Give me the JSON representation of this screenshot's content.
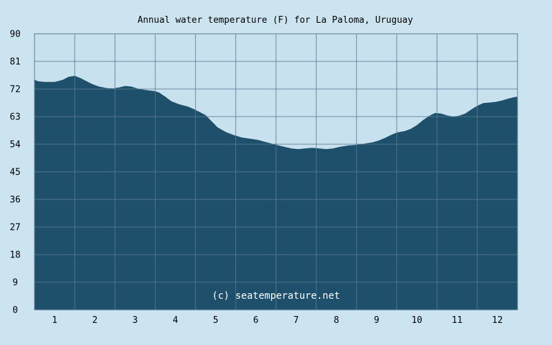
{
  "chart_data": {
    "type": "area",
    "title": "Annual water temperature (F) for La Paloma, Uruguay",
    "xlabel": "",
    "ylabel": "",
    "ylim": [
      0,
      90
    ],
    "xlim": [
      0.5,
      12.5
    ],
    "y_ticks": [
      "0",
      "9",
      "18",
      "27",
      "36",
      "45",
      "54",
      "63",
      "72",
      "81",
      "90"
    ],
    "x_ticks": [
      "1",
      "2",
      "3",
      "4",
      "5",
      "6",
      "7",
      "8",
      "9",
      "10",
      "11",
      "12"
    ],
    "grid": true,
    "annotation": "(c) seatemperature.net",
    "series": [
      {
        "x": [
          0.5,
          0.6,
          0.75,
          1.0,
          1.2,
          1.35,
          1.5,
          1.65,
          1.8,
          1.95,
          2.1,
          2.3,
          2.45,
          2.6,
          2.75,
          2.9,
          3.1,
          3.3,
          3.5,
          3.6,
          3.75,
          3.9,
          4.1,
          4.3,
          4.45,
          4.6,
          4.75,
          4.9,
          5.05,
          5.25,
          5.45,
          5.65,
          5.85,
          6.05,
          6.25,
          6.45,
          6.6,
          6.75,
          6.9,
          7.05,
          7.2,
          7.4,
          7.6,
          7.75,
          7.9,
          8.1,
          8.3,
          8.5,
          8.7,
          8.9,
          9.05,
          9.2,
          9.35,
          9.5,
          9.7,
          9.85,
          10.0,
          10.15,
          10.3,
          10.45,
          10.6,
          10.75,
          10.9,
          11.05,
          11.2,
          11.35,
          11.5,
          11.65,
          11.8,
          11.95,
          12.1,
          12.25,
          12.4,
          12.5
        ],
        "values": [
          75,
          74.5,
          74.3,
          74.3,
          75,
          76,
          76.3,
          75.5,
          74.5,
          73.5,
          72.8,
          72.3,
          72.2,
          72.5,
          73,
          72.8,
          72,
          71.6,
          71.3,
          70.8,
          69.5,
          68,
          67,
          66.3,
          65.5,
          64.5,
          63.5,
          61.5,
          59.5,
          58,
          57,
          56.2,
          55.8,
          55.4,
          54.7,
          54,
          53.5,
          53,
          52.6,
          52.4,
          52.6,
          52.8,
          52.6,
          52.4,
          52.6,
          53.2,
          53.6,
          53.8,
          54.2,
          54.6,
          55.2,
          56,
          57,
          57.8,
          58.3,
          59,
          60.2,
          61.8,
          63.2,
          64.2,
          64,
          63.4,
          63,
          63.3,
          64,
          65.3,
          66.5,
          67.4,
          67.6,
          67.8,
          68.2,
          68.8,
          69.3,
          69.5
        ],
        "color": "#1e4f6b"
      }
    ],
    "colors": {
      "background": "#cce3f0",
      "plot_background": "#c8e1ee",
      "area_fill": "#1e4f6b",
      "grid_line": "#5a7a92",
      "text": "#000000",
      "watermark": "#ffffff"
    }
  }
}
